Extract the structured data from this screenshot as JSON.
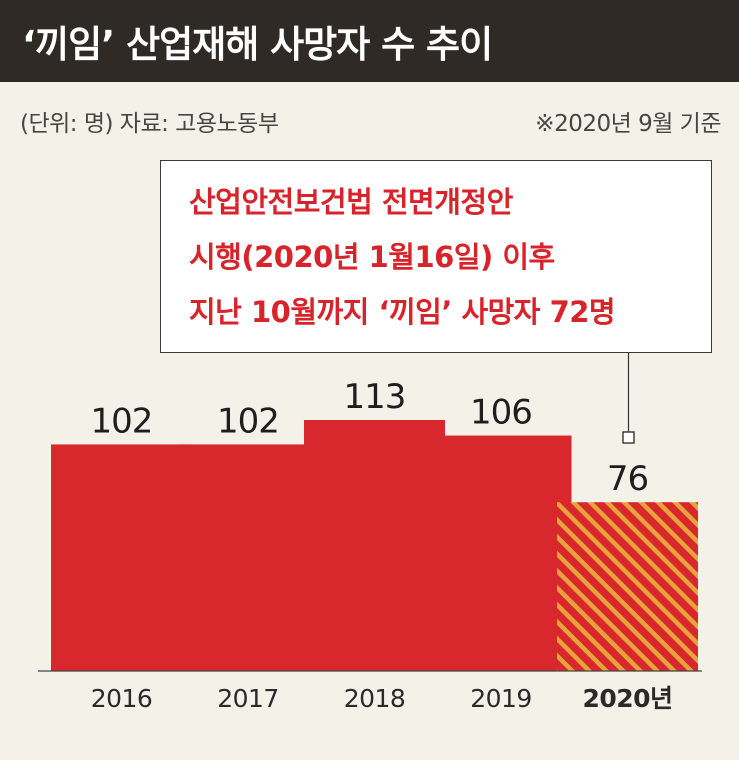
{
  "title": "‘끼임’ 산업재해 사망자 수 추이",
  "unit_source": "(단위: 명)  자료: 고용노동부",
  "basis_note": "※2020년 9월 기준",
  "callout": {
    "lines": [
      "산업안전보건법 전면개정안",
      "시행(2020년 1월16일) 이후",
      "지난 10월까지 ‘끼임’ 사망자 72명"
    ]
  },
  "colors": {
    "bar": "#d8282e",
    "hatch_stripe": "#e8a33c",
    "title_bg": "#2f2a26",
    "background": "#f4f1e9"
  },
  "chart_data": {
    "type": "bar",
    "categories": [
      "2016",
      "2017",
      "2018",
      "2019",
      "2020년"
    ],
    "values": [
      102,
      102,
      113,
      106,
      76
    ],
    "value_labels": [
      "102",
      "102",
      "113",
      "106",
      "76"
    ],
    "highlight_index": 4,
    "title": "‘끼임’ 산업재해 사망자 수 추이",
    "xlabel": "",
    "ylabel": "",
    "ylim": [
      0,
      113
    ],
    "grid": false,
    "legend": "none"
  }
}
